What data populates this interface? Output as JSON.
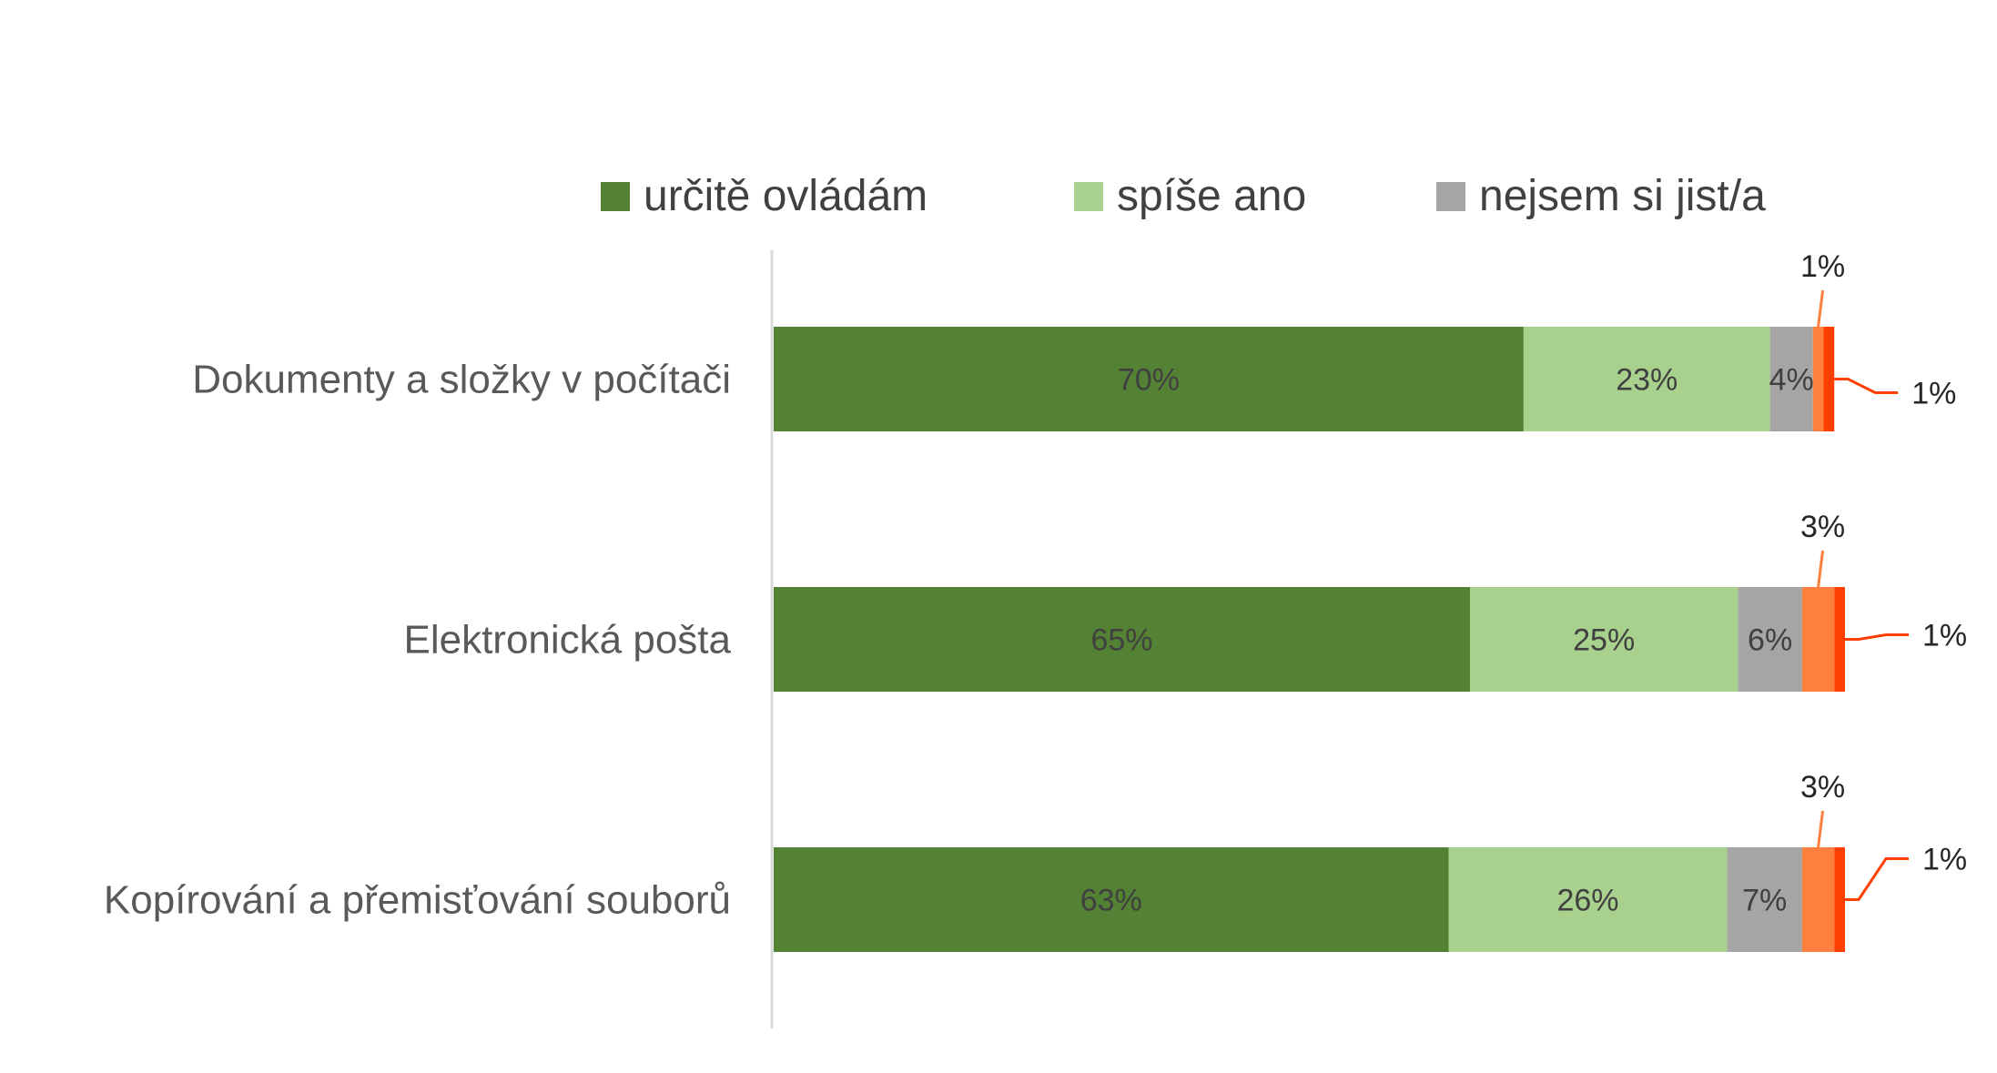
{
  "chart_data": {
    "type": "bar",
    "orientation": "horizontal",
    "stacked": true,
    "title": "",
    "xlabel": "",
    "ylabel": "",
    "xlim": [
      0,
      100
    ],
    "grid": false,
    "legend_position": "top",
    "categories": [
      "Dokumenty a složky v počítači",
      "Elektronická pošta",
      "Kopírování a přemisťování souborů"
    ],
    "series": [
      {
        "name": "určitě ovládám",
        "color": "#548235",
        "values": [
          70,
          65,
          63
        ],
        "labels": [
          "70%",
          "65%",
          "63%"
        ],
        "legend": true
      },
      {
        "name": "spíše ano",
        "color": "#A9D18E",
        "values": [
          23,
          25,
          26
        ],
        "labels": [
          "23%",
          "25%",
          "26%"
        ],
        "legend": true
      },
      {
        "name": "nejsem si jist/a",
        "color": "#A5A5A5",
        "values": [
          4,
          6,
          7
        ],
        "labels": [
          "4%",
          "6%",
          "7%"
        ],
        "legend": true
      },
      {
        "color": "#FF7F3F",
        "values": [
          1,
          3,
          3
        ],
        "labels": [
          "1%",
          "3%",
          "3%"
        ],
        "legend": false,
        "label_style": "callout-above"
      },
      {
        "color": "#FF3F00",
        "values": [
          1,
          1,
          1
        ],
        "labels": [
          "1%",
          "1%",
          "1%"
        ],
        "legend": false,
        "label_style": "callout-right"
      }
    ]
  }
}
